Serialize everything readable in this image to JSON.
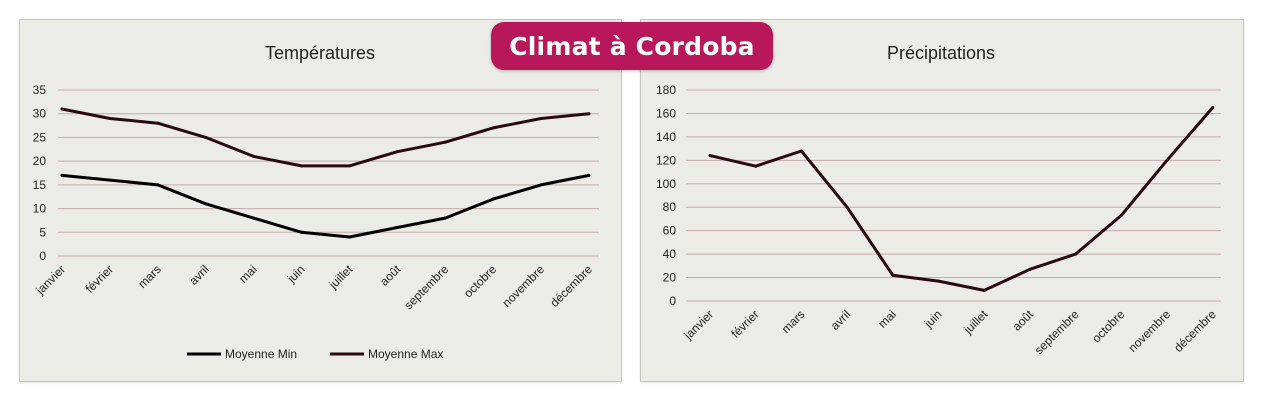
{
  "badge": {
    "label": "Climat à Cordoba",
    "color": "#b8175a"
  },
  "chart_data": [
    {
      "type": "line",
      "title": "Températures",
      "categories": [
        "janvier",
        "février",
        "mars",
        "avril",
        "mai",
        "juin",
        "juillet",
        "août",
        "septembre",
        "octobre",
        "novembre",
        "décembre"
      ],
      "ylim": [
        0,
        35
      ],
      "yticks": [
        0,
        5,
        10,
        15,
        20,
        25,
        30,
        35
      ],
      "grid": true,
      "legend": "bottom",
      "series": [
        {
          "name": "Moyenne Min",
          "color": "#000000",
          "values": [
            17,
            16,
            15,
            11,
            8,
            5,
            4,
            6,
            8,
            12,
            15,
            17
          ]
        },
        {
          "name": "Moyenne Max",
          "color": "#2a0a12",
          "values": [
            31,
            29,
            28,
            25,
            21,
            19,
            19,
            22,
            24,
            27,
            29,
            30
          ]
        }
      ]
    },
    {
      "type": "line",
      "title": "Précipitations",
      "categories": [
        "janvier",
        "février",
        "mars",
        "avril",
        "mai",
        "juin",
        "juillet",
        "août",
        "septembre",
        "octobre",
        "novembre",
        "décembre"
      ],
      "ylim": [
        0,
        180
      ],
      "yticks": [
        0,
        20,
        40,
        60,
        80,
        100,
        120,
        140,
        160,
        180
      ],
      "grid": true,
      "series": [
        {
          "color": "#2a0a12",
          "values": [
            124,
            115,
            128,
            80,
            22,
            17,
            9,
            27,
            40,
            73,
            120,
            165
          ]
        }
      ]
    }
  ]
}
